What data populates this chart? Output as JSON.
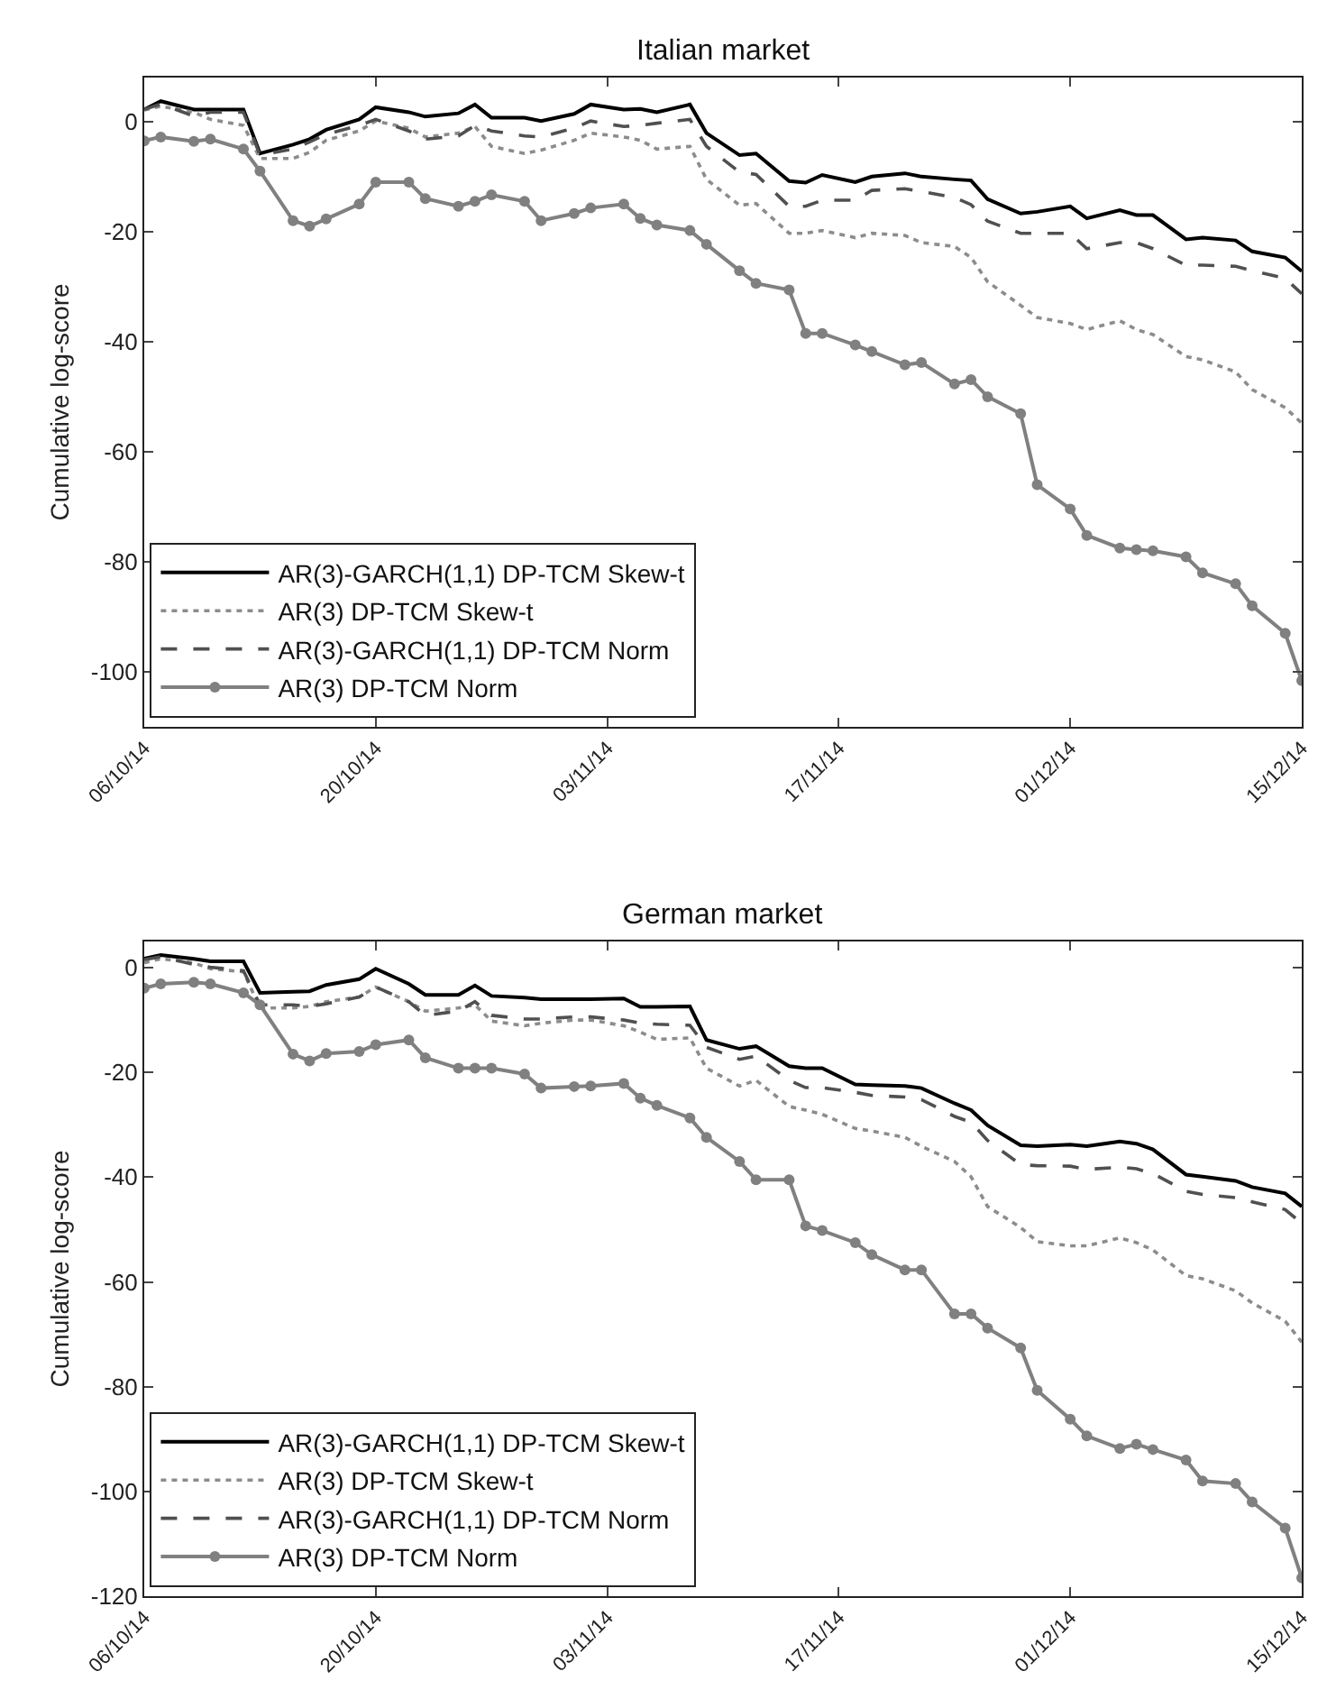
{
  "chart_data": [
    {
      "type": "line",
      "title": "Italian market",
      "ylabel": "Cumulative log-score",
      "legend": "bottom left",
      "x": [
        "--10-06",
        "--10-07",
        "--10-09",
        "--10-10",
        "--10-12",
        "--10-13",
        "--10-15",
        "--10-16",
        "--10-17",
        "--10-19",
        "--10-20",
        "--10-22",
        "--10-23",
        "--10-25",
        "--10-26",
        "--10-27",
        "--10-29",
        "--10-30",
        "--11-01",
        "--11-02",
        "--11-04",
        "--11-05",
        "--11-06",
        "--11-08",
        "--11-09",
        "--11-11",
        "--11-12",
        "--11-14",
        "--11-15",
        "--11-16",
        "--11-18",
        "--11-19",
        "--11-21",
        "--11-22",
        "--11-24",
        "--11-25",
        "--11-26",
        "--11-28",
        "--11-29",
        "--12-01",
        "--12-02",
        "--12-04",
        "--12-05",
        "--12-06",
        "--12-08",
        "--12-09",
        "--12-11",
        "--12-12",
        "--12-14",
        "--12-15"
      ],
      "xlim": [
        "--10-06",
        "--12-15"
      ],
      "xticks": [
        {
          "value": "--10-06",
          "label": "06/10/14"
        },
        {
          "value": "--10-20",
          "label": "20/10/14"
        },
        {
          "value": "--11-03",
          "label": "03/11/14"
        },
        {
          "value": "--11-17",
          "label": "17/11/14"
        },
        {
          "value": "--12-01",
          "label": "01/12/14"
        },
        {
          "value": "--12-15",
          "label": "15/12/14"
        }
      ],
      "ylim": [
        -110,
        8
      ],
      "yticks": [
        -100,
        -80,
        -60,
        -40,
        -20,
        0
      ],
      "series": [
        {
          "name": "AR(3)-GARCH(1,1) DP-TCM Skew-t",
          "color": "#000000",
          "line_style": "solid",
          "marker": "none",
          "values": [
            2.2,
            3.7,
            2.2,
            2.2,
            2.2,
            -5.8,
            -4.2,
            -3.2,
            -1.5,
            0.4,
            2.6,
            1.7,
            0.9,
            1.5,
            3.1,
            0.7,
            0.7,
            0.1,
            1.4,
            3.1,
            2.2,
            2.3,
            1.7,
            3.1,
            -2.1,
            -6.1,
            -5.8,
            -10.8,
            -11.1,
            -9.7,
            -11,
            -10,
            -9.4,
            -10,
            -10.5,
            -10.7,
            -14.1,
            -16.7,
            -16.4,
            -15.4,
            -17.6,
            -16.1,
            -17,
            -17,
            -21.4,
            -21.1,
            -21.6,
            -23.6,
            -24.7,
            -27.2
          ]
        },
        {
          "name": "AR(3) DP-TCM Skew-t",
          "color": "#8c8c8c",
          "line_style": "dotted",
          "marker": "none",
          "values": [
            2.1,
            2.8,
            1.7,
            0.4,
            -0.7,
            -6.7,
            -6.7,
            -5.6,
            -3.4,
            -1.7,
            0.1,
            -1.2,
            -2.8,
            -2.1,
            -0.9,
            -4.5,
            -5.8,
            -5.2,
            -3.4,
            -2.1,
            -2.8,
            -3.4,
            -5,
            -4.5,
            -10.5,
            -15.2,
            -14.9,
            -20.3,
            -20.3,
            -19.8,
            -21.1,
            -20.3,
            -20.7,
            -22,
            -22.7,
            -24.7,
            -29.1,
            -33.4,
            -35.6,
            -36.7,
            -37.8,
            -36.2,
            -37.8,
            -38.7,
            -42.7,
            -43.3,
            -45.5,
            -48.7,
            -52,
            -54.8
          ]
        },
        {
          "name": "AR(3)-GARCH(1,1) DP-TCM Norm",
          "color": "#505050",
          "line_style": "dashed",
          "marker": "none",
          "values": [
            2.2,
            3.2,
            1,
            1.7,
            1.7,
            -6.1,
            -5,
            -3.7,
            -2.3,
            -0.7,
            0.4,
            -1.7,
            -3.2,
            -2.6,
            -0.7,
            -1.7,
            -2.6,
            -2.8,
            -1.2,
            0.1,
            -0.9,
            -0.7,
            -0.3,
            0.4,
            -4.5,
            -9.2,
            -9.6,
            -15.4,
            -15.4,
            -14.3,
            -14.3,
            -12.5,
            -12.2,
            -12.7,
            -13.8,
            -15.1,
            -18.1,
            -20.3,
            -20.3,
            -20.3,
            -23.1,
            -22,
            -22,
            -23.1,
            -26.1,
            -26.1,
            -26.3,
            -27.1,
            -28.5,
            -31.3
          ]
        },
        {
          "name": "AR(3) DP-TCM Norm",
          "color": "#808080",
          "line_style": "solid",
          "marker": "circle",
          "values": [
            -3.5,
            -2.8,
            -3.6,
            -3.2,
            -5,
            -9,
            -18,
            -19,
            -17.7,
            -15,
            -11,
            -11,
            -14,
            -15.4,
            -14.5,
            -13.3,
            -14.5,
            -18,
            -16.7,
            -15.7,
            -15,
            -17.6,
            -18.8,
            -19.8,
            -22.3,
            -27.1,
            -29.4,
            -30.6,
            -38.5,
            -38.5,
            -40.6,
            -41.8,
            -44.2,
            -43.8,
            -47.7,
            -46.9,
            -50,
            -53.1,
            -66,
            -70.4,
            -75.2,
            -77.5,
            -77.8,
            -78,
            -79.1,
            -82,
            -84,
            -88,
            -93,
            -101.6
          ]
        }
      ]
    },
    {
      "type": "line",
      "title": "German market",
      "ylabel": "Cumulative log-score",
      "legend": "bottom left",
      "x": [
        "--10-06",
        "--10-07",
        "--10-09",
        "--10-10",
        "--10-12",
        "--10-13",
        "--10-15",
        "--10-16",
        "--10-17",
        "--10-19",
        "--10-20",
        "--10-22",
        "--10-23",
        "--10-25",
        "--10-26",
        "--10-27",
        "--10-29",
        "--10-30",
        "--11-01",
        "--11-02",
        "--11-04",
        "--11-05",
        "--11-06",
        "--11-08",
        "--11-09",
        "--11-11",
        "--11-12",
        "--11-14",
        "--11-15",
        "--11-16",
        "--11-18",
        "--11-19",
        "--11-21",
        "--11-22",
        "--11-24",
        "--11-25",
        "--11-26",
        "--11-28",
        "--11-29",
        "--12-01",
        "--12-02",
        "--12-04",
        "--12-05",
        "--12-06",
        "--12-08",
        "--12-09",
        "--12-11",
        "--12-12",
        "--12-14",
        "--12-15"
      ],
      "xlim": [
        "--10-06",
        "--12-15"
      ],
      "xticks": [
        {
          "value": "--10-06",
          "label": "06/10/14"
        },
        {
          "value": "--10-20",
          "label": "20/10/14"
        },
        {
          "value": "--11-03",
          "label": "03/11/14"
        },
        {
          "value": "--11-17",
          "label": "17/11/14"
        },
        {
          "value": "--12-01",
          "label": "01/12/14"
        },
        {
          "value": "--12-15",
          "label": "15/12/14"
        }
      ],
      "ylim": [
        -120,
        5
      ],
      "yticks": [
        -120,
        -100,
        -80,
        -60,
        -40,
        -20,
        0
      ],
      "series": [
        {
          "name": "AR(3)-GARCH(1,1) DP-TCM Skew-t",
          "color": "#000000",
          "line_style": "solid",
          "marker": "none",
          "values": [
            1.7,
            2.4,
            1.7,
            1.2,
            1.2,
            -4.8,
            -4.6,
            -4.5,
            -3.3,
            -2.2,
            -0.2,
            -3.1,
            -5.2,
            -5.2,
            -3.4,
            -5.4,
            -5.7,
            -6,
            -6,
            -6,
            -5.9,
            -7.5,
            -7.5,
            -7.4,
            -13.8,
            -15.5,
            -15,
            -18.8,
            -19.2,
            -19.2,
            -22.3,
            -22.4,
            -22.6,
            -23,
            -25.9,
            -27.2,
            -30.1,
            -33.9,
            -34.1,
            -33.8,
            -34.1,
            -33.2,
            -33.6,
            -34.7,
            -39.5,
            -39.9,
            -40.7,
            -41.9,
            -43.1,
            -45.6
          ]
        },
        {
          "name": "AR(3) DP-TCM Skew-t",
          "color": "#8c8c8c",
          "line_style": "dotted",
          "marker": "none",
          "values": [
            0.9,
            1.7,
            0.9,
            -0.2,
            -0.8,
            -7.7,
            -7.7,
            -7.4,
            -6.5,
            -5.6,
            -3.7,
            -6.5,
            -8.3,
            -7.7,
            -7.1,
            -10.2,
            -11.1,
            -10.6,
            -10,
            -10,
            -11.1,
            -12.3,
            -13.7,
            -13.4,
            -19.2,
            -22.6,
            -21.5,
            -26.5,
            -27.2,
            -28,
            -30.7,
            -31.2,
            -32.4,
            -34.1,
            -37,
            -39.9,
            -45.6,
            -49.6,
            -52.3,
            -53.1,
            -53.1,
            -51.6,
            -52.5,
            -53.9,
            -58.8,
            -59.4,
            -61.7,
            -64,
            -67.5,
            -71.5
          ]
        },
        {
          "name": "AR(3)-GARCH(1,1) DP-TCM Norm",
          "color": "#505050",
          "line_style": "dashed",
          "marker": "none",
          "values": [
            1.5,
            2.1,
            0.6,
            0.1,
            -0.6,
            -7.1,
            -7.1,
            -7.4,
            -6.9,
            -5.6,
            -3.7,
            -6.5,
            -9.1,
            -8.3,
            -6.5,
            -9.1,
            -9.8,
            -9.8,
            -9.4,
            -9.4,
            -10,
            -10.6,
            -10.8,
            -11,
            -15.2,
            -17.5,
            -16.9,
            -21.5,
            -22.9,
            -22.9,
            -23.8,
            -24.4,
            -24.7,
            -25.2,
            -28.4,
            -29.5,
            -33,
            -37.6,
            -37.8,
            -37.9,
            -38.5,
            -38.1,
            -38.4,
            -39.3,
            -42.7,
            -43.3,
            -43.9,
            -44.7,
            -46.2,
            -48.8
          ]
        },
        {
          "name": "AR(3) DP-TCM Norm",
          "color": "#808080",
          "line_style": "solid",
          "marker": "circle",
          "values": [
            -3.9,
            -3.1,
            -2.8,
            -3.1,
            -4.8,
            -7.1,
            -16.5,
            -17.8,
            -16.4,
            -16,
            -14.7,
            -13.8,
            -17.2,
            -19.2,
            -19.2,
            -19.2,
            -20.3,
            -23,
            -22.7,
            -22.6,
            -22.1,
            -24.9,
            -26.3,
            -28.7,
            -32.4,
            -37,
            -40.5,
            -40.5,
            -49.3,
            -50.2,
            -52.5,
            -54.8,
            -57.7,
            -57.7,
            -66.1,
            -66.1,
            -68.8,
            -72.6,
            -80.7,
            -86.2,
            -89.4,
            -91.8,
            -91,
            -92,
            -94,
            -98,
            -98.5,
            -102,
            -107,
            -116.5
          ]
        }
      ]
    }
  ]
}
